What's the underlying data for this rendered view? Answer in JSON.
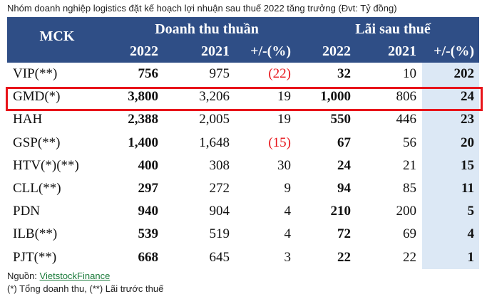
{
  "caption": "Nhóm doanh nghiệp logistics đặt kế hoạch lợi nhuận sau thuế 2022 tăng trưởng (Đvt: Tỷ đồng)",
  "table": {
    "header": {
      "mck": "MCK",
      "groups": [
        "Doanh thu thuần",
        "Lãi sau thuế"
      ],
      "columns": [
        "2022",
        "2021",
        "+/-(%)",
        "2022",
        "2021",
        "+/-(%)"
      ]
    },
    "rows": [
      [
        "VIP(**)",
        "756",
        "975",
        "(22)",
        "32",
        "10",
        "202"
      ],
      [
        "GMD(*)",
        "3,800",
        "3,206",
        "19",
        "1,000",
        "806",
        "24"
      ],
      [
        "HAH",
        "2,388",
        "2,005",
        "19",
        "550",
        "446",
        "23"
      ],
      [
        "GSP(**)",
        "1,400",
        "1,648",
        "(15)",
        "67",
        "56",
        "20"
      ],
      [
        "HTV(*)(**)",
        "400",
        "308",
        "30",
        "24",
        "21",
        "15"
      ],
      [
        "CLL(**)",
        "297",
        "272",
        "9",
        "94",
        "85",
        "11"
      ],
      [
        "PDN",
        "940",
        "904",
        "4",
        "210",
        "200",
        "5"
      ],
      [
        "ILB(**)",
        "539",
        "519",
        "4",
        "72",
        "69",
        "4"
      ],
      [
        "PJT(**)",
        "668",
        "645",
        "3",
        "22",
        "22",
        "1"
      ]
    ]
  },
  "footer": {
    "source_label": "Nguồn:",
    "source_link": "VietstockFinance",
    "note": "(*) Tổng doanh thu, (**) Lãi trước thuế"
  }
}
